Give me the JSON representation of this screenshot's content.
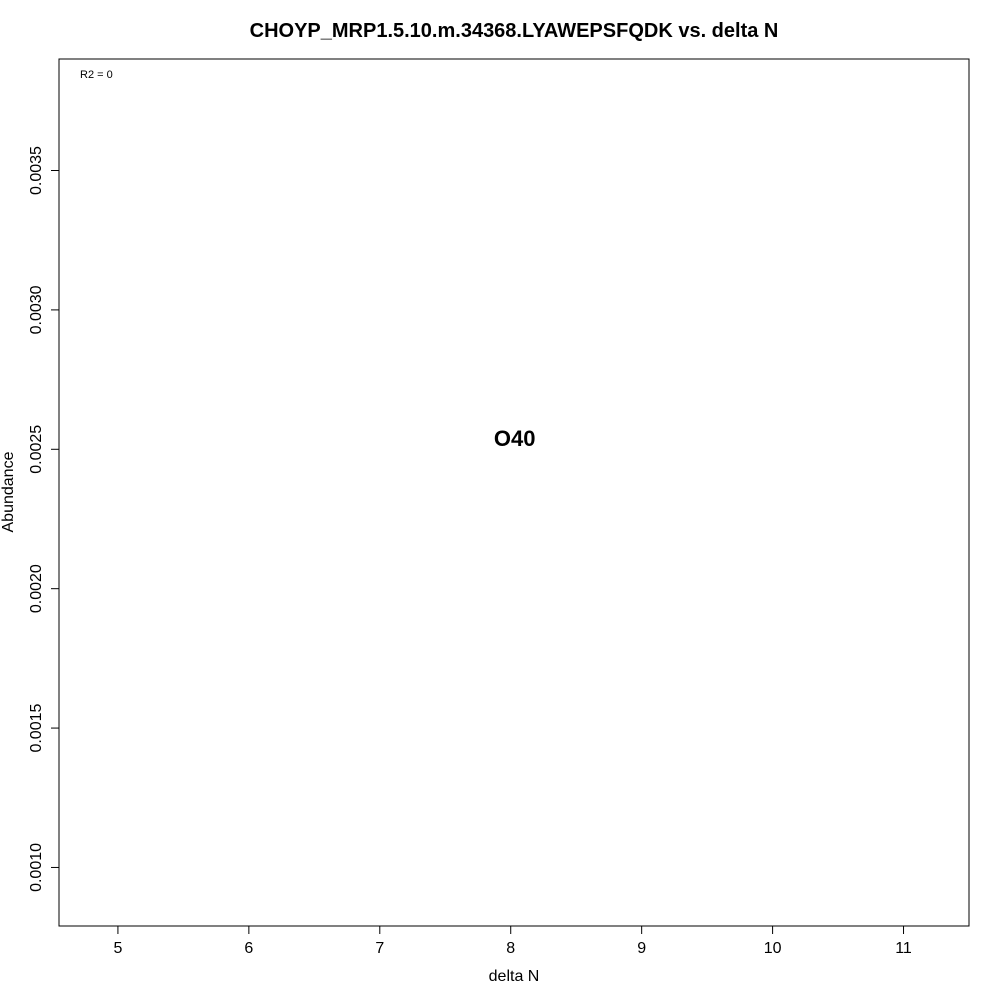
{
  "chart_data": {
    "type": "scatter",
    "title": "CHOYP_MRP1.5.10.m.34368.LYAWEPSFQDK vs. delta N",
    "xlabel": "delta N",
    "ylabel": "Abundance",
    "xlim": [
      4.55,
      11.5
    ],
    "ylim": [
      0.00079,
      0.0039
    ],
    "x_ticks": [
      5,
      6,
      7,
      8,
      9,
      10,
      11
    ],
    "x_tick_labels": [
      "5",
      "6",
      "7",
      "8",
      "9",
      "10",
      "11"
    ],
    "y_ticks": [
      0.001,
      0.0015,
      0.002,
      0.0025,
      0.003,
      0.0035
    ],
    "y_tick_labels": [
      "0.0010",
      "0.0015",
      "0.0020",
      "0.0025",
      "0.0030",
      "0.0035"
    ],
    "grid": false,
    "annotation": "R2 = 0",
    "points": [
      {
        "label": "O40",
        "x": 8.03,
        "y": 0.00254
      }
    ]
  }
}
